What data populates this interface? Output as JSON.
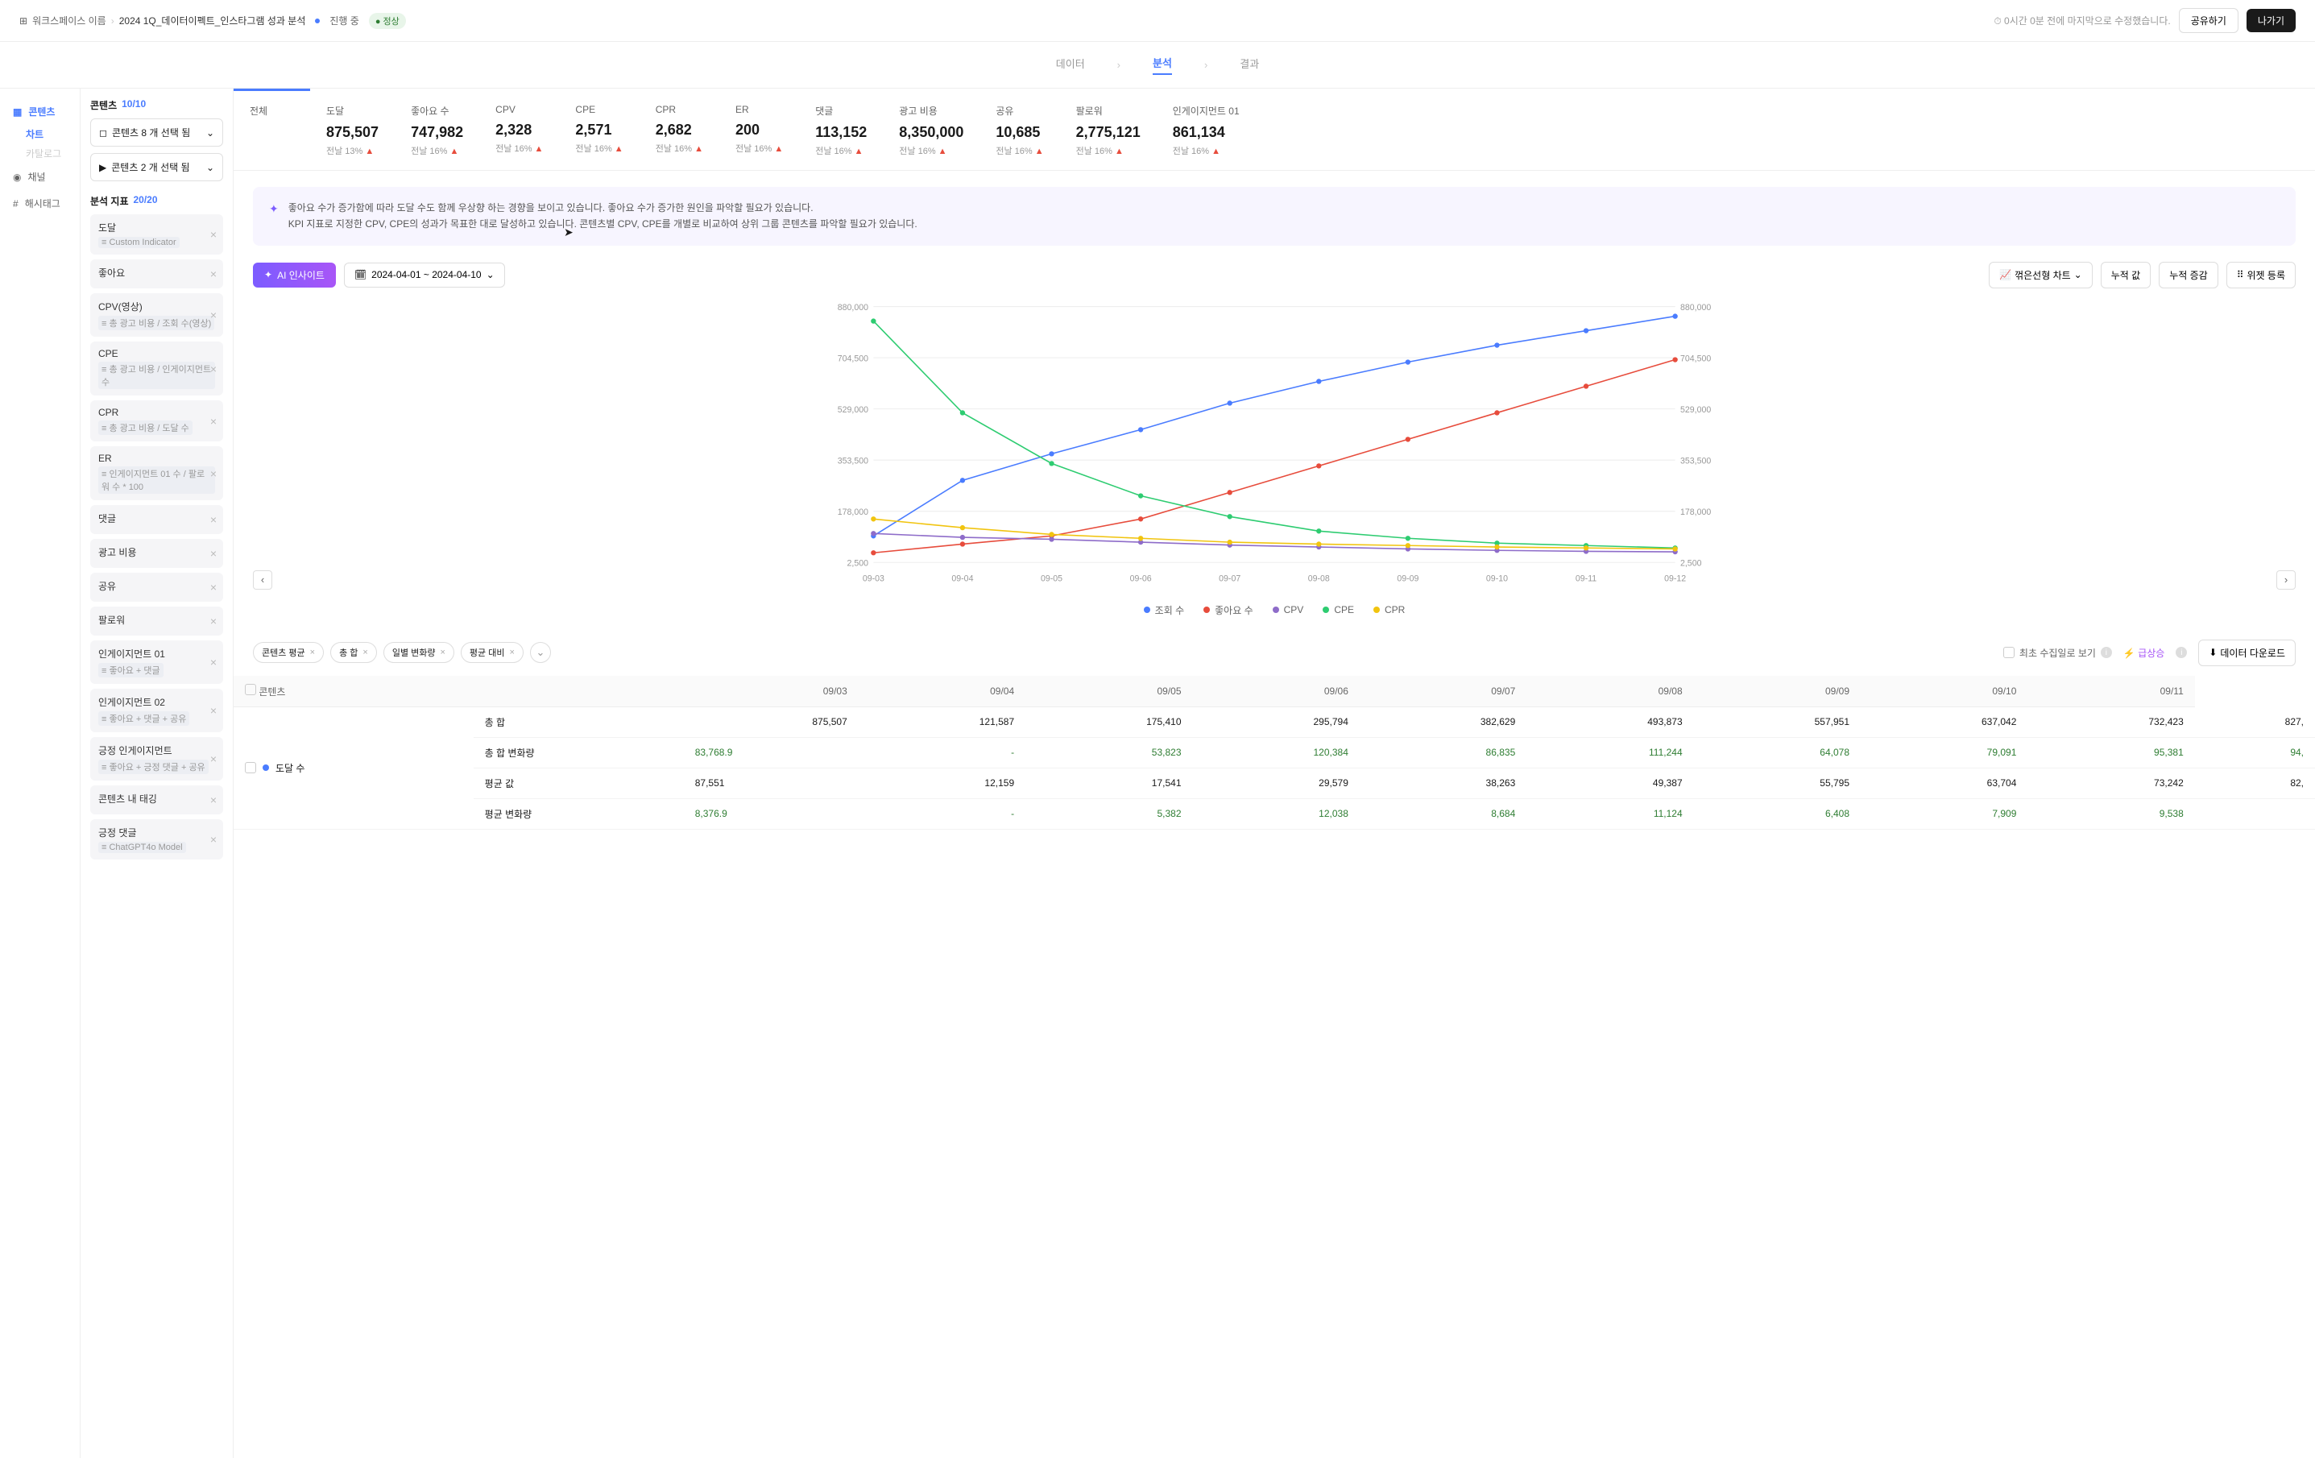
{
  "header": {
    "workspace_icon": "⊞",
    "workspace_label": "워크스페이스 이름",
    "page_title": "2024 1Q_데이터이펙트_인스타그램 성과 분석",
    "status_text": "진행 중",
    "badge_text": "정상",
    "last_edit": "⏱ 0시간 0분 전에 마지막으로 수정했습니다.",
    "share_btn": "공유하기",
    "exit_btn": "나가기"
  },
  "top_tabs": {
    "data": "데이터",
    "analysis": "분석",
    "result": "결과"
  },
  "sidebar": {
    "contents": "콘텐츠",
    "chart": "차트",
    "catalog": "카탈로그",
    "channel": "채널",
    "hashtag": "해시태그"
  },
  "filters": {
    "contents_title": "콘텐츠",
    "contents_count": "10/10",
    "select1": "콘텐츠 8 개 선택 됨",
    "select2": "콘텐츠 2 개 선택 됨",
    "metrics_title": "분석 지표",
    "metrics_count": "20/20",
    "items": [
      {
        "label": "도달",
        "sub": "Custom Indicator"
      },
      {
        "label": "좋아요"
      },
      {
        "label": "CPV(영상)",
        "sub": "총 광고 비용 / 조회 수(영상)"
      },
      {
        "label": "CPE",
        "sub": "총 광고 비용 / 인게이지먼트 수"
      },
      {
        "label": "CPR",
        "sub": "총 광고 비용 / 도달 수"
      },
      {
        "label": "ER",
        "sub": "인게이지먼트 01 수 / 팔로워 수 * 100"
      },
      {
        "label": "댓글"
      },
      {
        "label": "광고 비용"
      },
      {
        "label": "공유"
      },
      {
        "label": "팔로워"
      },
      {
        "label": "인게이지먼트 01",
        "sub": "좋아요 + 댓글"
      },
      {
        "label": "인게이지먼트 02",
        "sub": "좋아요 + 댓글 + 공유"
      },
      {
        "label": "긍정 인게이지먼트",
        "sub": "좋아요 + 긍정 댓글 + 공유"
      },
      {
        "label": "콘텐츠 내 태깅"
      },
      {
        "label": "긍정 댓글",
        "sub": "ChatGPT4o Model"
      }
    ]
  },
  "metrics": [
    {
      "label": "전체",
      "value": "",
      "change": ""
    },
    {
      "label": "도달",
      "value": "875,507",
      "change": "전날 13%"
    },
    {
      "label": "좋아요 수",
      "value": "747,982",
      "change": "전날 16%"
    },
    {
      "label": "CPV",
      "value": "2,328",
      "change": "전날 16%"
    },
    {
      "label": "CPE",
      "value": "2,571",
      "change": "전날 16%"
    },
    {
      "label": "CPR",
      "value": "2,682",
      "change": "전날 16%"
    },
    {
      "label": "ER",
      "value": "200",
      "change": "전날 16%"
    },
    {
      "label": "댓글",
      "value": "113,152",
      "change": "전날 16%"
    },
    {
      "label": "광고 비용",
      "value": "8,350,000",
      "change": "전날 16%"
    },
    {
      "label": "공유",
      "value": "10,685",
      "change": "전날 16%"
    },
    {
      "label": "팔로워",
      "value": "2,775,121",
      "change": "전날 16%"
    },
    {
      "label": "인게이지먼트 01",
      "value": "861,134",
      "change": "전날 16%"
    }
  ],
  "insight": {
    "line1": "좋아요 수가 증가함에 따라 도달 수도 함께 우상향 하는 경향을 보이고 있습니다. 좋아요 수가 증가한 원인을 파악할 필요가 있습니다.",
    "line2": "KPI 지표로 지정한 CPV, CPE의 성과가 목표한 대로 달성하고 있습니다. 콘텐츠별 CPV, CPE를 개별로 비교하여 상위 그룹 콘텐츠를 파악할 필요가 있습니다."
  },
  "toolbar": {
    "ai_btn": "AI 인사이트",
    "date_range": "2024-04-01 ~ 2024-04-10",
    "chart_type": "꺾은선형 차트",
    "cum_val": "누적 값",
    "cum_change": "누적 증감",
    "widget": "위젯 등록"
  },
  "chart": {
    "y_ticks": [
      "880,000",
      "704,500",
      "529,000",
      "353,500",
      "178,000",
      "2,500"
    ],
    "x_labels": [
      "09-03",
      "09-04",
      "09-05",
      "09-06",
      "09-07",
      "09-08",
      "09-09",
      "09-10",
      "09-11",
      "09-12"
    ],
    "series": [
      {
        "name": "조회 수",
        "color": "#4a7cff",
        "points": [
          55,
          170,
          225,
          275,
          330,
          375,
          415,
          450,
          480,
          510
        ]
      },
      {
        "name": "좋아요 수",
        "color": "#e74c3c",
        "points": [
          20,
          38,
          55,
          90,
          145,
          200,
          255,
          310,
          365,
          420
        ]
      },
      {
        "name": "CPV",
        "color": "#8e6cc9",
        "points": [
          60,
          52,
          48,
          42,
          36,
          32,
          28,
          25,
          23,
          22
        ]
      },
      {
        "name": "CPE",
        "color": "#2ecc71",
        "points": [
          500,
          310,
          205,
          138,
          95,
          65,
          50,
          40,
          35,
          30
        ]
      },
      {
        "name": "CPR",
        "color": "#f1c40f",
        "points": [
          90,
          72,
          58,
          50,
          42,
          38,
          35,
          32,
          30,
          28
        ]
      }
    ],
    "y_max": 530
  },
  "legend": [
    {
      "name": "조회 수",
      "color": "#4a7cff"
    },
    {
      "name": "좋아요 수",
      "color": "#e74c3c"
    },
    {
      "name": "CPV",
      "color": "#8e6cc9"
    },
    {
      "name": "CPE",
      "color": "#2ecc71"
    },
    {
      "name": "CPR",
      "color": "#f1c40f"
    }
  ],
  "chips": [
    "콘텐츠 평균",
    "총 합",
    "일별 변화량",
    "평균 대비"
  ],
  "chips_right": {
    "first_collect": "최초 수집일로 보기",
    "surge": "급상승",
    "download": "데이터 다운로드"
  },
  "table": {
    "headers": [
      "콘텐츠",
      "",
      "09/03",
      "09/04",
      "09/05",
      "09/06",
      "09/07",
      "09/08",
      "09/09",
      "09/10",
      "09/11"
    ],
    "content_label": "도달 수",
    "rows": [
      {
        "label": "총 합",
        "vals": [
          "875,507",
          "121,587",
          "175,410",
          "295,794",
          "382,629",
          "493,873",
          "557,951",
          "637,042",
          "732,423",
          "827,"
        ]
      },
      {
        "label": "총 합 변화량",
        "cls": "val-green",
        "vals": [
          "83,768.9",
          "-",
          "53,823",
          "120,384",
          "86,835",
          "111,244",
          "64,078",
          "79,091",
          "95,381",
          "94,"
        ]
      },
      {
        "label": "평균 값",
        "vals": [
          "87,551",
          "12,159",
          "17,541",
          "29,579",
          "38,263",
          "49,387",
          "55,795",
          "63,704",
          "73,242",
          "82,"
        ]
      },
      {
        "label": "평균 변화량",
        "cls": "val-green",
        "vals": [
          "8,376.9",
          "-",
          "5,382",
          "12,038",
          "8,684",
          "11,124",
          "6,408",
          "7,909",
          "9,538",
          ""
        ]
      }
    ]
  }
}
